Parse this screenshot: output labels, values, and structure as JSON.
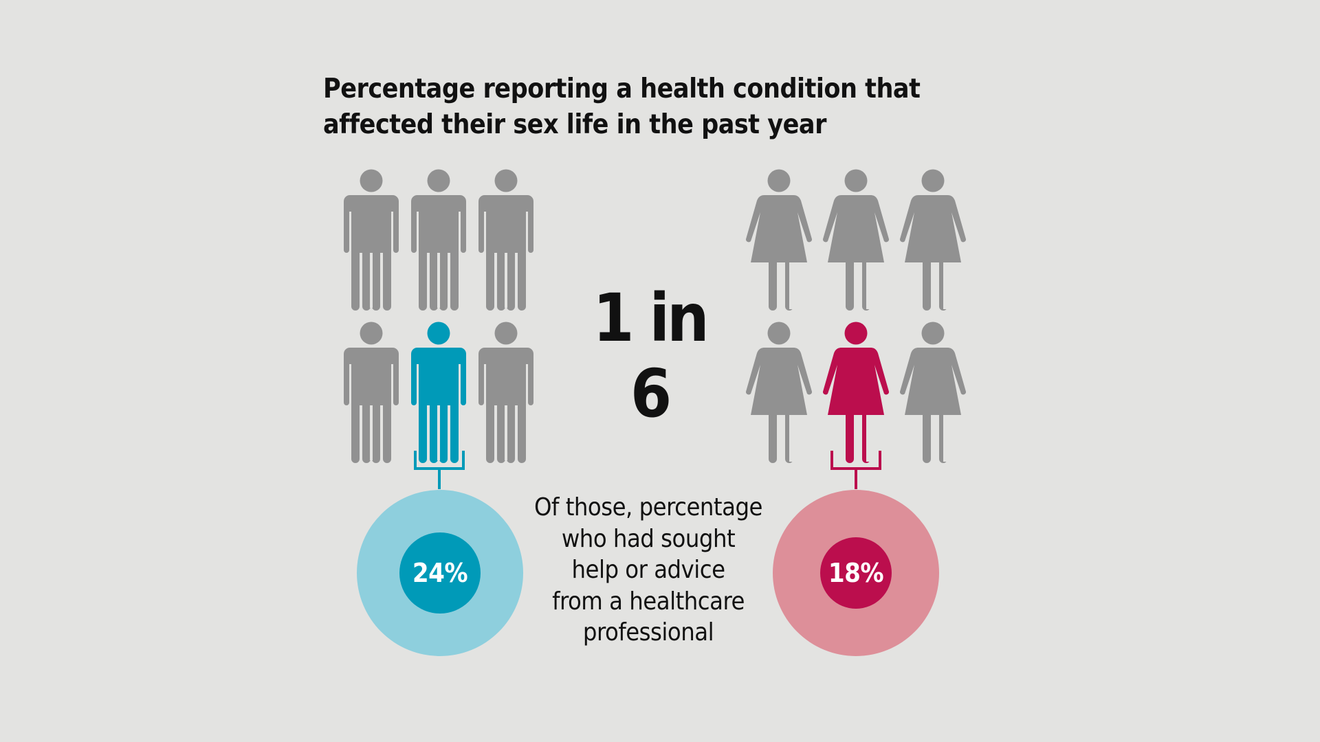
{
  "title": {
    "line1": "Percentage reporting a health condition that",
    "line2": "affected their sex life in the past year"
  },
  "ratio": "1 in 6",
  "note": {
    "line1": "Of those, percentage",
    "line2": "who had sought",
    "line3": "help or advice",
    "line4": "from a healthcare",
    "line5": "professional"
  },
  "men": {
    "percent": "24%",
    "highlight_color": "#009ab8",
    "ring_color": "#8ecfdd",
    "highlighted_index": 4,
    "total": 6
  },
  "women": {
    "percent": "18%",
    "highlight_color": "#bb0e4d",
    "ring_color": "#dd8f99",
    "highlighted_index": 4,
    "total": 6
  },
  "colors": {
    "person_grey": "#919191",
    "background": "#e3e3e1"
  }
}
